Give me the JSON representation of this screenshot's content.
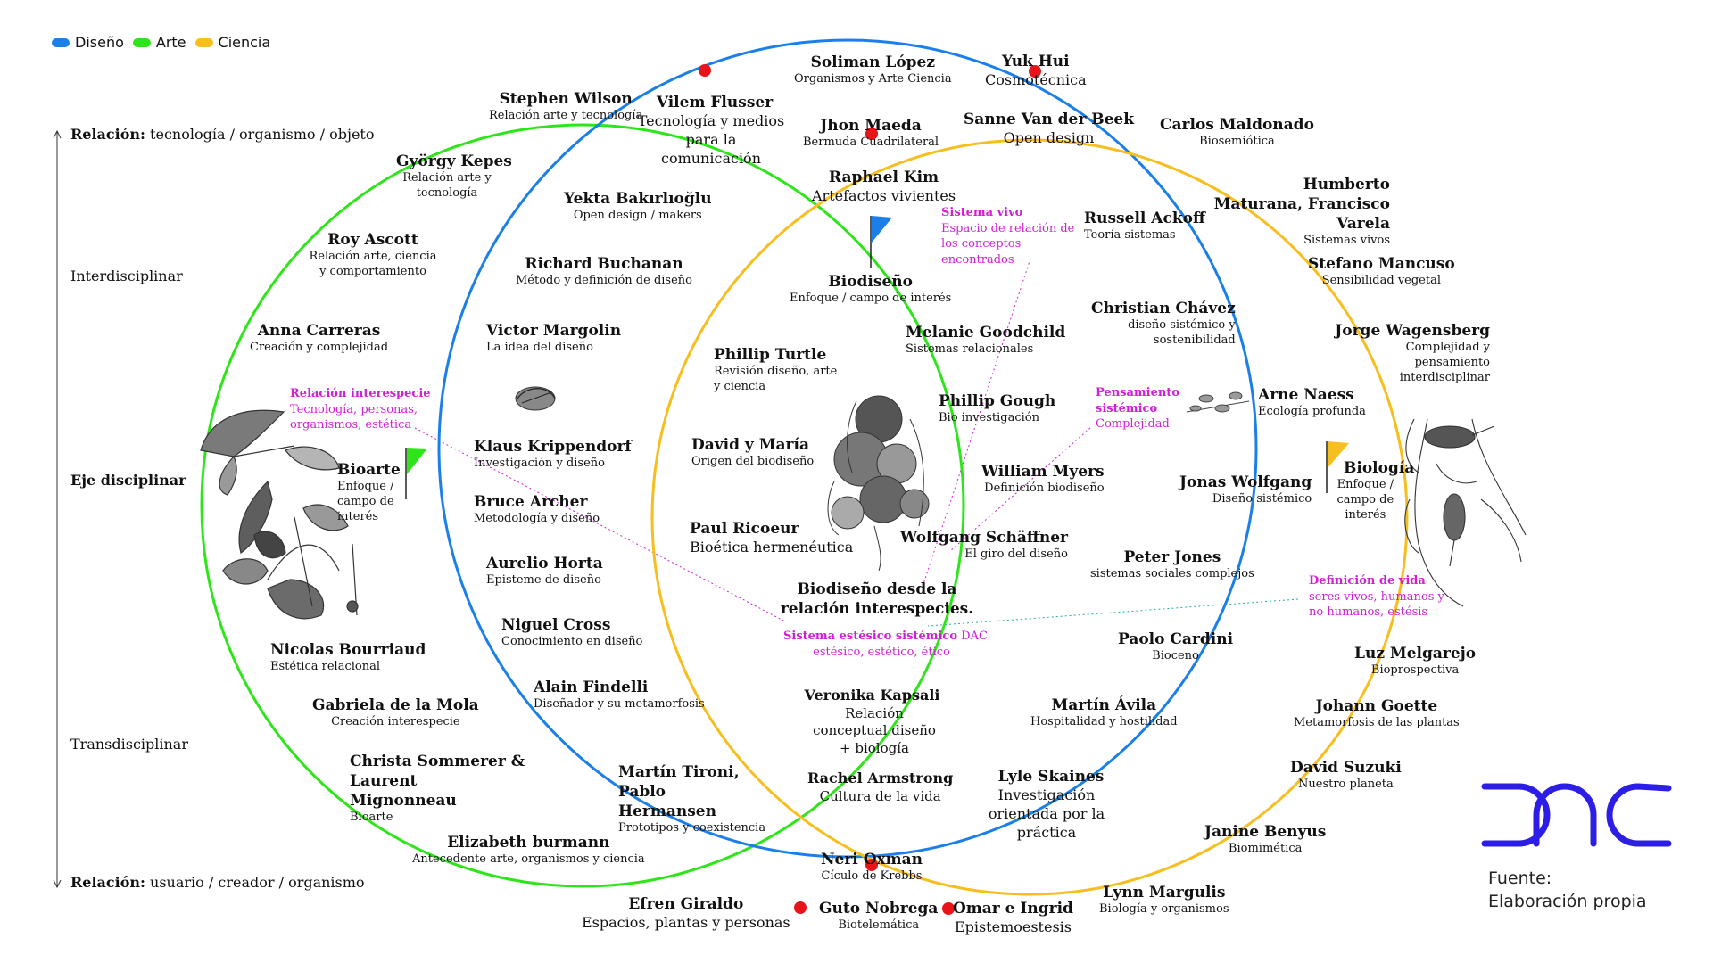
{
  "colors": {
    "diseno": "#1a7fe8",
    "arte": "#2ee51a",
    "ciencia": "#f7be1f",
    "accent": "#d11fd8",
    "logo": "#2d1ee6",
    "dot": "#e8141a"
  },
  "legend": [
    {
      "label": "Diseño",
      "color": "#1a7fe8"
    },
    {
      "label": "Arte",
      "color": "#2ee51a"
    },
    {
      "label": "Ciencia",
      "color": "#f7be1f"
    }
  ],
  "axis": {
    "top_bold": "Relación:",
    "top_rest": " tecnología / organismo / objeto",
    "inter": "Interdisciplinar",
    "eje": "Eje disciplinar",
    "trans": "Transdisciplinar",
    "bottom_bold": "Relación:",
    "bottom_rest": " usuario / creador / organismo"
  },
  "nodes": [
    {
      "name": "Stephen Wilson",
      "desc": "Relación arte y tecnología"
    },
    {
      "name": "Vilem Flusser",
      "desc": "Tecnología y medios para la comunicación"
    },
    {
      "name": "Soliman López",
      "desc": "Organismos y Arte Ciencia"
    },
    {
      "name": "Yuk Hui",
      "desc": "Cosmotécnica"
    },
    {
      "name": "Jhon Maeda",
      "desc": "Bermuda Cuadrilateral"
    },
    {
      "name": "Sanne Van der Beek",
      "desc": "Open design"
    },
    {
      "name": "Carlos Maldonado",
      "desc": "Biosemiótica"
    },
    {
      "name": "György Kepes",
      "desc": "Relación arte y tecnología"
    },
    {
      "name": "Yekta Bakırlıoğlu",
      "desc": "Open design / makers"
    },
    {
      "name": "Raphael Kim",
      "desc": "Artefactos vivientes"
    },
    {
      "name": "Humberto Maturana, Francisco Varela",
      "desc": "Sistemas vivos"
    },
    {
      "name": "Roy Ascott",
      "desc": "Relación arte, ciencia y comportamiento"
    },
    {
      "name": "Russell Ackoff",
      "desc": "Teoría sistemas"
    },
    {
      "name": "Richard Buchanan",
      "desc": "Método y definición de diseño"
    },
    {
      "name": "Stefano Mancuso",
      "desc": "Sensibilidad vegetal"
    },
    {
      "name": "Biodiseño",
      "desc": "Enfoque / campo de interés"
    },
    {
      "name": "Christian Chávez",
      "desc": "diseño sistémico y sostenibilidad"
    },
    {
      "name": "Anna Carreras",
      "desc": "Creación y complejidad"
    },
    {
      "name": "Victor Margolin",
      "desc": "La idea del diseño"
    },
    {
      "name": "Melanie Goodchild",
      "desc": "Sistemas relacionales"
    },
    {
      "name": "Jorge Wagensberg",
      "desc": "Complejidad y pensamiento interdisciplinar"
    },
    {
      "name": "Phillip Turtle",
      "desc": "Revisión diseño, arte y ciencia"
    },
    {
      "name": "Phillip Gough",
      "desc": "Bio investigación"
    },
    {
      "name": "Arne Naess",
      "desc": "Ecología profunda"
    },
    {
      "name": "Klaus Krippendorf",
      "desc": "Investigación y diseño"
    },
    {
      "name": "David y María",
      "desc": "Origen del biodiseño"
    },
    {
      "name": "William Myers",
      "desc": "Definición biodiseño"
    },
    {
      "name": "Bioarte",
      "desc": "Enfoque / campo de interés"
    },
    {
      "name": "Biología",
      "desc": "Enfoque / campo de interés"
    },
    {
      "name": "Jonas Wolfgang",
      "desc": "Diseño sistémico"
    },
    {
      "name": "Bruce Archer",
      "desc": "Metodología y diseño"
    },
    {
      "name": "Paul Ricoeur",
      "desc": "Bioética hermenéutica"
    },
    {
      "name": "Wolfgang Schäffner",
      "desc": "El giro del diseño"
    },
    {
      "name": "Aurelio Horta",
      "desc": "Episteme de diseño"
    },
    {
      "name": "Peter Jones",
      "desc": "sistemas sociales complejos"
    },
    {
      "name": "Niguel Cross",
      "desc": "Conocimiento en diseño"
    },
    {
      "name": "Nicolas Bourriaud",
      "desc": "Estética relacional"
    },
    {
      "name": "Paolo Cardini",
      "desc": "Bioceno"
    },
    {
      "name": "Luz Melgarejo",
      "desc": "Bioprospectiva"
    },
    {
      "name": "Alain Findelli",
      "desc": "Diseñador y su metamorfosis"
    },
    {
      "name": "Veronika Kapsali",
      "desc": "Relación conceptual diseño + biología"
    },
    {
      "name": "Gabriela de la Mola",
      "desc": "Creación interespecie"
    },
    {
      "name": "Martín Ávila",
      "desc": "Hospitalidad y hostilidad"
    },
    {
      "name": "Johann Goette",
      "desc": "Metamorfosis de las plantas"
    },
    {
      "name": "Christa Sommerer & Laurent Mignonneau",
      "desc": "Bioarte"
    },
    {
      "name": "Martín Tironi, Pablo Hermansen",
      "desc": "Prototipos y coexistencia"
    },
    {
      "name": "Rachel Armstrong",
      "desc": "Cultura de la vida"
    },
    {
      "name": "Lyle Skaines",
      "desc": "Investigación orientada por la práctica"
    },
    {
      "name": "David Suzuki",
      "desc": "Nuestro planeta"
    },
    {
      "name": "Elizabeth burmann",
      "desc": "Antecedente arte, organismos y ciencia"
    },
    {
      "name": "Janine Benyus",
      "desc": "Biomimética"
    },
    {
      "name": "Neri Oxman",
      "desc": "Cículo de Krebbs"
    },
    {
      "name": "Efren Giraldo",
      "desc": "Espacios, plantas y personas"
    },
    {
      "name": "Guto Nobrega",
      "desc": "Biotelemática"
    },
    {
      "name": "Omar e Ingrid",
      "desc": "Epistemoestesis"
    },
    {
      "name": "Lynn Margulis",
      "desc": "Biología y organismos"
    }
  ],
  "center": {
    "title": "Biodiseño desde la relación interespecies."
  },
  "annotations": {
    "sistema_vivo": {
      "head": "Sistema vivo",
      "text": "Espacio de relación de los conceptos encontrados"
    },
    "relacion_interespecie": {
      "head": "Relación interespecie",
      "text": "Tecnología, personas, organismos, estética"
    },
    "pensamiento": {
      "head": "Pensamiento sistémico",
      "text": "Complejidad"
    },
    "definicion_vida": {
      "head": "Definición de vida",
      "text": "seres vivos, humanos y no humanos, estésis"
    },
    "sistema_estesico": {
      "head": "Sistema estésico sistémico",
      "tag": "DAC",
      "text": "estésico, estético, ético"
    }
  },
  "logo": {
    "text": "DAC"
  },
  "source": {
    "line1": "Fuente:",
    "line2": "Elaboración propia"
  }
}
